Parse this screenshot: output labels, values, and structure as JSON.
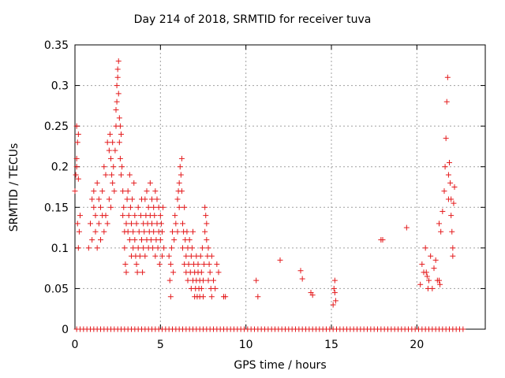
{
  "chart_data": {
    "type": "scatter",
    "title": "Day 214 of 2018, SRMTID for receiver tuva",
    "xlabel": "GPS time / hours",
    "ylabel": "SRMTID / TECUs",
    "xlim": [
      0,
      24
    ],
    "ylim": [
      0,
      0.35
    ],
    "xticks": [
      0,
      5,
      10,
      15,
      20
    ],
    "xtick_labels": [
      "0",
      "5",
      "10",
      "15",
      "20"
    ],
    "yticks": [
      0,
      0.05,
      0.1,
      0.15,
      0.2,
      0.25,
      0.3,
      0.35
    ],
    "ytick_labels": [
      "0",
      "0.05",
      "0.1",
      "0.15",
      "0.2",
      "0.25",
      "0.3",
      "0.35"
    ],
    "grid": true,
    "marker": "+",
    "color": "#e41a1c",
    "series": [
      {
        "name": "SRMTID",
        "points": [
          [
            0.0,
            0.17
          ],
          [
            0.05,
            0.19
          ],
          [
            0.1,
            0.2
          ],
          [
            0.1,
            0.25
          ],
          [
            0.15,
            0.23
          ],
          [
            0.15,
            0.13
          ],
          [
            0.2,
            0.24
          ],
          [
            0.2,
            0.1
          ],
          [
            0.25,
            0.12
          ],
          [
            0.3,
            0.14
          ],
          [
            0.1,
            0.21
          ],
          [
            0.2,
            0.185
          ],
          [
            0.8,
            0.1
          ],
          [
            0.9,
            0.13
          ],
          [
            1.0,
            0.16
          ],
          [
            1.0,
            0.11
          ],
          [
            1.1,
            0.17
          ],
          [
            1.1,
            0.15
          ],
          [
            1.2,
            0.14
          ],
          [
            1.2,
            0.12
          ],
          [
            1.3,
            0.1
          ],
          [
            1.3,
            0.18
          ],
          [
            1.4,
            0.16
          ],
          [
            1.4,
            0.13
          ],
          [
            1.5,
            0.15
          ],
          [
            1.5,
            0.11
          ],
          [
            1.6,
            0.14
          ],
          [
            1.6,
            0.17
          ],
          [
            1.7,
            0.12
          ],
          [
            1.7,
            0.2
          ],
          [
            1.8,
            0.19
          ],
          [
            1.8,
            0.14
          ],
          [
            1.9,
            0.13
          ],
          [
            1.9,
            0.23
          ],
          [
            2.0,
            0.22
          ],
          [
            2.0,
            0.16
          ],
          [
            2.05,
            0.24
          ],
          [
            2.1,
            0.21
          ],
          [
            2.1,
            0.15
          ],
          [
            2.15,
            0.19
          ],
          [
            2.2,
            0.18
          ],
          [
            2.2,
            0.23
          ],
          [
            2.25,
            0.2
          ],
          [
            2.3,
            0.17
          ],
          [
            2.35,
            0.22
          ],
          [
            2.4,
            0.25
          ],
          [
            2.4,
            0.27
          ],
          [
            2.45,
            0.28
          ],
          [
            2.45,
            0.3
          ],
          [
            2.5,
            0.32
          ],
          [
            2.5,
            0.31
          ],
          [
            2.55,
            0.33
          ],
          [
            2.55,
            0.29
          ],
          [
            2.6,
            0.26
          ],
          [
            2.6,
            0.23
          ],
          [
            2.65,
            0.25
          ],
          [
            2.65,
            0.21
          ],
          [
            2.7,
            0.24
          ],
          [
            2.7,
            0.19
          ],
          [
            2.75,
            0.2
          ],
          [
            2.8,
            0.17
          ],
          [
            2.8,
            0.14
          ],
          [
            2.85,
            0.15
          ],
          [
            2.9,
            0.12
          ],
          [
            2.9,
            0.1
          ],
          [
            2.95,
            0.08
          ],
          [
            3.0,
            0.07
          ],
          [
            3.0,
            0.13
          ],
          [
            3.05,
            0.16
          ],
          [
            3.1,
            0.12
          ],
          [
            3.1,
            0.17
          ],
          [
            3.15,
            0.14
          ],
          [
            3.2,
            0.11
          ],
          [
            3.2,
            0.19
          ],
          [
            3.25,
            0.15
          ],
          [
            3.3,
            0.09
          ],
          [
            3.3,
            0.13
          ],
          [
            3.35,
            0.16
          ],
          [
            3.4,
            0.1
          ],
          [
            3.4,
            0.12
          ],
          [
            3.45,
            0.18
          ],
          [
            3.5,
            0.11
          ],
          [
            3.5,
            0.14
          ],
          [
            3.55,
            0.09
          ],
          [
            3.6,
            0.08
          ],
          [
            3.6,
            0.13
          ],
          [
            3.65,
            0.07
          ],
          [
            3.7,
            0.1
          ],
          [
            3.7,
            0.15
          ],
          [
            3.75,
            0.12
          ],
          [
            3.8,
            0.09
          ],
          [
            3.85,
            0.14
          ],
          [
            3.9,
            0.11
          ],
          [
            3.9,
            0.16
          ],
          [
            3.95,
            0.07
          ],
          [
            4.0,
            0.13
          ],
          [
            4.0,
            0.1
          ],
          [
            4.05,
            0.12
          ],
          [
            4.1,
            0.16
          ],
          [
            4.1,
            0.09
          ],
          [
            4.15,
            0.14
          ],
          [
            4.2,
            0.11
          ],
          [
            4.2,
            0.17
          ],
          [
            4.25,
            0.13
          ],
          [
            4.3,
            0.15
          ],
          [
            4.3,
            0.1
          ],
          [
            4.35,
            0.12
          ],
          [
            4.4,
            0.14
          ],
          [
            4.4,
            0.18
          ],
          [
            4.45,
            0.11
          ],
          [
            4.5,
            0.13
          ],
          [
            4.5,
            0.16
          ],
          [
            4.55,
            0.1
          ],
          [
            4.6,
            0.15
          ],
          [
            4.6,
            0.12
          ],
          [
            4.65,
            0.14
          ],
          [
            4.7,
            0.09
          ],
          [
            4.7,
            0.17
          ],
          [
            4.75,
            0.11
          ],
          [
            4.8,
            0.13
          ],
          [
            4.8,
            0.16
          ],
          [
            4.85,
            0.1
          ],
          [
            4.9,
            0.12
          ],
          [
            4.9,
            0.15
          ],
          [
            4.95,
            0.08
          ],
          [
            5.0,
            0.11
          ],
          [
            5.0,
            0.14
          ],
          [
            5.05,
            0.13
          ],
          [
            5.1,
            0.09
          ],
          [
            5.1,
            0.12
          ],
          [
            5.15,
            0.15
          ],
          [
            5.2,
            0.1
          ],
          [
            5.5,
            0.09
          ],
          [
            5.55,
            0.06
          ],
          [
            5.6,
            0.04
          ],
          [
            5.6,
            0.08
          ],
          [
            5.65,
            0.1
          ],
          [
            5.7,
            0.12
          ],
          [
            5.75,
            0.07
          ],
          [
            5.8,
            0.11
          ],
          [
            5.85,
            0.14
          ],
          [
            5.9,
            0.13
          ],
          [
            6.0,
            0.16
          ],
          [
            6.0,
            0.12
          ],
          [
            6.05,
            0.17
          ],
          [
            6.1,
            0.15
          ],
          [
            6.1,
            0.18
          ],
          [
            6.15,
            0.2
          ],
          [
            6.2,
            0.19
          ],
          [
            6.25,
            0.21
          ],
          [
            6.25,
            0.17
          ],
          [
            6.3,
            0.13
          ],
          [
            6.3,
            0.1
          ],
          [
            6.35,
            0.12
          ],
          [
            6.4,
            0.08
          ],
          [
            6.4,
            0.15
          ],
          [
            6.45,
            0.11
          ],
          [
            6.5,
            0.09
          ],
          [
            6.5,
            0.07
          ],
          [
            6.55,
            0.12
          ],
          [
            6.6,
            0.1
          ],
          [
            6.6,
            0.06
          ],
          [
            6.65,
            0.08
          ],
          [
            6.7,
            0.11
          ],
          [
            6.75,
            0.07
          ],
          [
            6.8,
            0.09
          ],
          [
            6.8,
            0.05
          ],
          [
            6.85,
            0.1
          ],
          [
            6.9,
            0.06
          ],
          [
            6.9,
            0.12
          ],
          [
            6.95,
            0.08
          ],
          [
            7.0,
            0.04
          ],
          [
            7.0,
            0.07
          ],
          [
            7.05,
            0.05
          ],
          [
            7.1,
            0.09
          ],
          [
            7.1,
            0.06
          ],
          [
            7.15,
            0.04
          ],
          [
            7.2,
            0.07
          ],
          [
            7.2,
            0.08
          ],
          [
            7.25,
            0.05
          ],
          [
            7.3,
            0.06
          ],
          [
            7.3,
            0.04
          ],
          [
            7.35,
            0.09
          ],
          [
            7.4,
            0.07
          ],
          [
            7.4,
            0.05
          ],
          [
            7.45,
            0.1
          ],
          [
            7.5,
            0.04
          ],
          [
            7.5,
            0.06
          ],
          [
            7.55,
            0.08
          ],
          [
            7.6,
            0.12
          ],
          [
            7.6,
            0.15
          ],
          [
            7.65,
            0.14
          ],
          [
            7.7,
            0.11
          ],
          [
            7.7,
            0.13
          ],
          [
            7.75,
            0.09
          ],
          [
            7.8,
            0.1
          ],
          [
            7.8,
            0.06
          ],
          [
            7.85,
            0.08
          ],
          [
            7.9,
            0.07
          ],
          [
            7.95,
            0.05
          ],
          [
            8.0,
            0.04
          ],
          [
            8.0,
            0.09
          ],
          [
            8.1,
            0.06
          ],
          [
            8.2,
            0.05
          ],
          [
            8.3,
            0.08
          ],
          [
            8.4,
            0.07
          ],
          [
            8.7,
            0.04
          ],
          [
            8.8,
            0.04
          ],
          [
            10.6,
            0.06
          ],
          [
            10.7,
            0.04
          ],
          [
            12.0,
            0.085
          ],
          [
            13.2,
            0.072
          ],
          [
            13.3,
            0.062
          ],
          [
            13.8,
            0.045
          ],
          [
            13.9,
            0.042
          ],
          [
            15.1,
            0.03
          ],
          [
            15.15,
            0.05
          ],
          [
            15.2,
            0.06
          ],
          [
            15.2,
            0.045
          ],
          [
            15.25,
            0.035
          ],
          [
            17.9,
            0.11
          ],
          [
            18.0,
            0.11
          ],
          [
            19.4,
            0.125
          ],
          [
            20.2,
            0.055
          ],
          [
            20.3,
            0.08
          ],
          [
            20.4,
            0.07
          ],
          [
            20.5,
            0.1
          ],
          [
            20.55,
            0.07
          ],
          [
            20.6,
            0.065
          ],
          [
            20.65,
            0.05
          ],
          [
            20.7,
            0.06
          ],
          [
            20.8,
            0.09
          ],
          [
            20.9,
            0.05
          ],
          [
            21.0,
            0.075
          ],
          [
            21.1,
            0.085
          ],
          [
            21.2,
            0.06
          ],
          [
            21.3,
            0.13
          ],
          [
            21.3,
            0.06
          ],
          [
            21.35,
            0.055
          ],
          [
            21.4,
            0.12
          ],
          [
            21.5,
            0.145
          ],
          [
            21.6,
            0.17
          ],
          [
            21.65,
            0.2
          ],
          [
            21.7,
            0.235
          ],
          [
            21.75,
            0.28
          ],
          [
            21.8,
            0.31
          ],
          [
            21.85,
            0.19
          ],
          [
            21.85,
            0.16
          ],
          [
            21.9,
            0.205
          ],
          [
            21.95,
            0.18
          ],
          [
            22.0,
            0.16
          ],
          [
            22.0,
            0.14
          ],
          [
            22.05,
            0.12
          ],
          [
            22.1,
            0.1
          ],
          [
            22.1,
            0.09
          ],
          [
            22.15,
            0.155
          ],
          [
            22.2,
            0.175
          ]
        ]
      }
    ],
    "baseline_points_x": [
      0.1,
      0.3,
      0.5,
      0.7,
      0.9,
      1.1,
      1.3,
      1.5,
      1.7,
      1.9,
      2.1,
      2.3,
      2.5,
      2.7,
      2.9,
      3.1,
      3.3,
      3.5,
      3.7,
      3.9,
      4.1,
      4.3,
      4.5,
      4.7,
      4.9,
      5.1,
      5.3,
      5.5,
      5.7,
      5.9,
      6.1,
      6.3,
      6.5,
      6.7,
      6.9,
      7.1,
      7.3,
      7.5,
      7.7,
      7.9,
      8.1,
      8.3,
      8.5,
      8.7,
      8.9,
      9.1,
      9.3,
      9.5,
      9.7,
      9.9,
      10.1,
      10.3,
      10.5,
      10.7,
      10.9,
      11.1,
      11.3,
      11.5,
      11.7,
      11.9,
      12.1,
      12.3,
      12.5,
      12.7,
      12.9,
      13.1,
      13.3,
      13.5,
      13.7,
      13.9,
      14.1,
      14.3,
      14.5,
      14.7,
      14.9,
      15.1,
      15.3,
      15.5,
      15.7,
      15.9,
      16.1,
      16.3,
      16.5,
      16.7,
      16.9,
      17.1,
      17.3,
      17.5,
      17.7,
      17.9,
      18.1,
      18.3,
      18.5,
      18.7,
      18.9,
      19.1,
      19.3,
      19.5,
      19.7,
      19.9,
      20.1,
      20.3,
      20.5,
      20.7,
      20.9,
      21.1,
      21.3,
      21.5,
      21.7,
      21.9,
      22.1,
      22.3,
      22.5,
      22.7
    ]
  }
}
